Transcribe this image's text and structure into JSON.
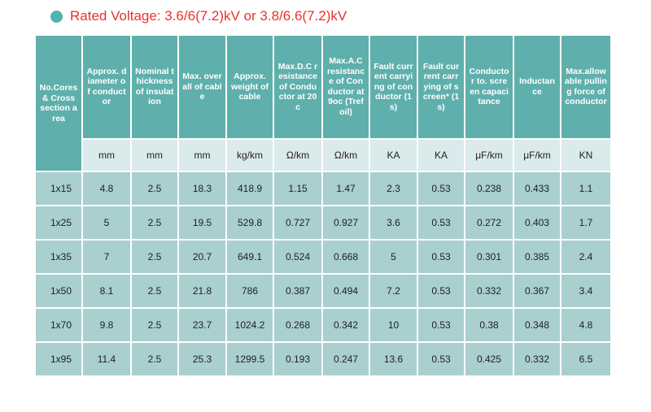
{
  "title": "Rated Voltage: 3.6/6(7.2)kV or 3.8/6.6(7.2)kV",
  "colors": {
    "header": "#5fb0ac",
    "units_row": "#dbeaea",
    "data_row": "#a9cfcf",
    "title": "#e8322e",
    "dot": "#4fb3ae"
  },
  "table": {
    "corner_header": "No.Cores & Cross section area",
    "columns": [
      {
        "header": "Approx. diameter of conductor",
        "unit": "mm"
      },
      {
        "header": "Nominal thickness of insulation",
        "unit": "mm"
      },
      {
        "header": "Max. overall of cable",
        "unit": "mm"
      },
      {
        "header": "Approx. weight of cable",
        "unit": "kg/km"
      },
      {
        "header": "Max.D.C resistance of Conductor at 20c",
        "unit": "Ω/km"
      },
      {
        "header": "Max.A.C resistance of Conductor at 9oc (Trefoil)",
        "unit": "Ω/km"
      },
      {
        "header": "Fault current carrying of conductor (1s)",
        "unit": "KA"
      },
      {
        "header": "Fault current carrying of screen* (1s)",
        "unit": "KA"
      },
      {
        "header": "Conductor to. screen capacitance",
        "unit": "μF/km"
      },
      {
        "header": "Inductance",
        "unit": "μF/km"
      },
      {
        "header": "Max.allowable pulling force ofconductor",
        "unit": "KN"
      }
    ],
    "rows": [
      [
        "1x15",
        "4.8",
        "2.5",
        "18.3",
        "418.9",
        "1.15",
        "1.47",
        "2.3",
        "0.53",
        "0.238",
        "0.433",
        "1.1"
      ],
      [
        "1x25",
        "5",
        "2.5",
        "19.5",
        "529.8",
        "0.727",
        "0.927",
        "3.6",
        "0.53",
        "0.272",
        "0.403",
        "1.7"
      ],
      [
        "1x35",
        "7",
        "2.5",
        "20.7",
        "649.1",
        "0.524",
        "0.668",
        "5",
        "0.53",
        "0.301",
        "0.385",
        "2.4"
      ],
      [
        "1x50",
        "8.1",
        "2.5",
        "21.8",
        "786",
        "0.387",
        "0.494",
        "7.2",
        "0.53",
        "0.332",
        "0.367",
        "3.4"
      ],
      [
        "1x70",
        "9.8",
        "2.5",
        "23.7",
        "1024.2",
        "0.268",
        "0.342",
        "10",
        "0.53",
        "0.38",
        "0.348",
        "4.8"
      ],
      [
        "1x95",
        "11.4",
        "2.5",
        "25.3",
        "1299.5",
        "0.193",
        "0.247",
        "13.6",
        "0.53",
        "0.425",
        "0.332",
        "6.5"
      ]
    ]
  }
}
